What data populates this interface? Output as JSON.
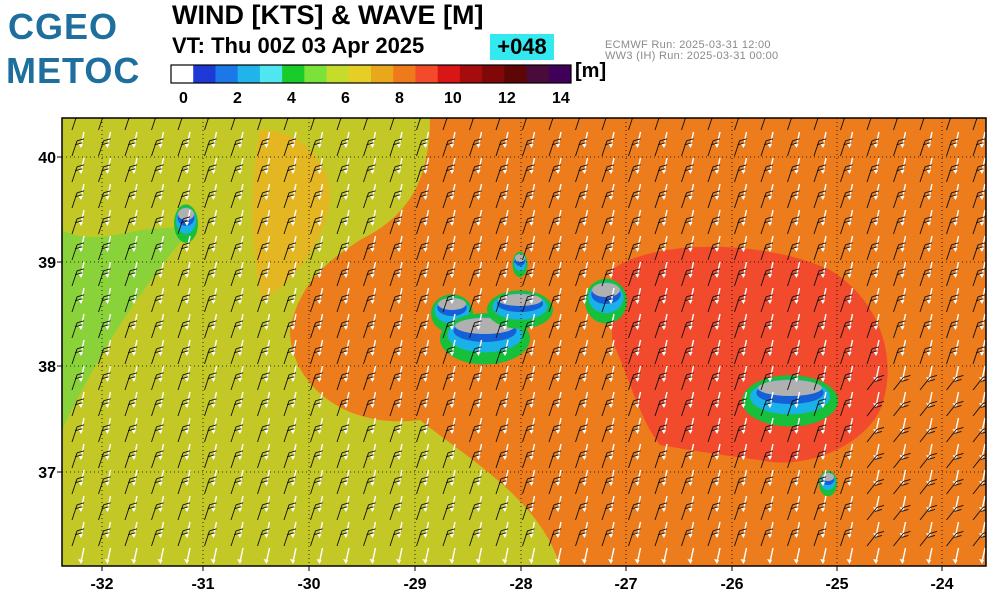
{
  "header": {
    "logo_line1": "CGEO",
    "logo_line2": "METOC",
    "title": "WIND [KTS] & WAVE [M]",
    "valid_time": "VT:  Thu 00Z 03 Apr 2025",
    "forecast_hour": "+048",
    "run_line1": "ECMWF    Run: 2025-03-31 12:00",
    "run_line2": "WW3 (IH) Run: 2025-03-31 00:00"
  },
  "colorbar": {
    "unit": "[m]",
    "ticks": [
      "0",
      "2",
      "4",
      "6",
      "8",
      "10",
      "12",
      "14"
    ],
    "colors": [
      "#ffffff",
      "#1d39d6",
      "#1a78e8",
      "#21b4ea",
      "#4fe6f2",
      "#18cc2a",
      "#7be23a",
      "#c5dd2a",
      "#e6cf24",
      "#e9a71b",
      "#ef7a1c",
      "#f24a2a",
      "#d91616",
      "#a60c0c",
      "#800808",
      "#5e0606",
      "#4a0a3a",
      "#40005a"
    ]
  },
  "map": {
    "lon_labels": [
      "-32",
      "-31",
      "-30",
      "-29",
      "-28",
      "-27",
      "-26",
      "-25",
      "-24"
    ],
    "lat_labels": [
      "40",
      "39",
      "38",
      "37"
    ],
    "colors": {
      "yellow": "#c4c826",
      "green": "#8ad23a",
      "orange": "#ec7c1c",
      "red": "#f14a2c",
      "land": "#b0b0b0"
    }
  }
}
